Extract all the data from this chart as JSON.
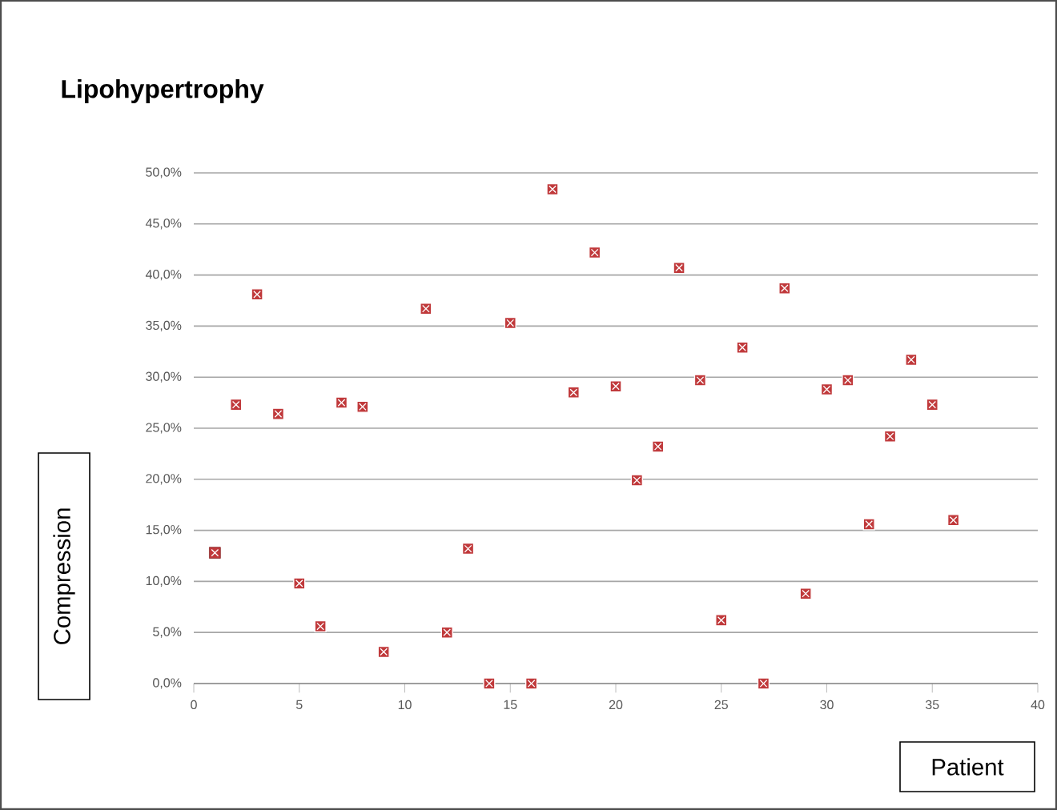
{
  "chart_data": {
    "type": "scatter",
    "title": "Lipohypertrophy",
    "xlabel": "Patient",
    "ylabel": "Compression",
    "x": [
      1,
      2,
      3,
      4,
      5,
      6,
      7,
      8,
      9,
      11,
      12,
      13,
      14,
      15,
      16,
      17,
      18,
      19,
      20,
      21,
      22,
      23,
      24,
      25,
      26,
      27,
      28,
      29,
      30,
      31,
      32,
      33,
      34,
      35,
      36
    ],
    "series": [
      {
        "color": "#c0393b",
        "values": [
          12.8,
          27.3,
          38.1,
          26.4,
          9.8,
          5.6,
          27.5,
          27.1,
          3.1,
          36.7,
          5.0,
          13.2,
          0,
          35.3,
          0,
          48.4,
          28.5,
          42.2,
          29.1,
          19.9,
          23.2,
          40.7,
          29.7,
          6.2,
          32.9,
          0,
          38.7,
          8.8,
          28.8,
          29.7,
          15.6,
          24.2,
          31.7,
          27.3,
          16.0
        ]
      }
    ],
    "xlim": [
      0,
      40
    ],
    "xticks": [
      0,
      5,
      10,
      15,
      20,
      25,
      30,
      35,
      40
    ],
    "ylim": [
      0,
      50
    ],
    "yticks": [
      {
        "value": 0,
        "label": "0,0%"
      },
      {
        "value": 5,
        "label": "5,0%"
      },
      {
        "value": 10,
        "label": "10,0%"
      },
      {
        "value": 15,
        "label": "15,0%"
      },
      {
        "value": 20,
        "label": "20,0%"
      },
      {
        "value": 25,
        "label": "25,0%"
      },
      {
        "value": 30,
        "label": "30,0%"
      },
      {
        "value": 35,
        "label": "35,0%"
      },
      {
        "value": 40,
        "label": "40,0%"
      },
      {
        "value": 45,
        "label": "45,0%"
      },
      {
        "value": 50,
        "label": "50,0%"
      }
    ],
    "grid": "y",
    "marker": "square"
  }
}
